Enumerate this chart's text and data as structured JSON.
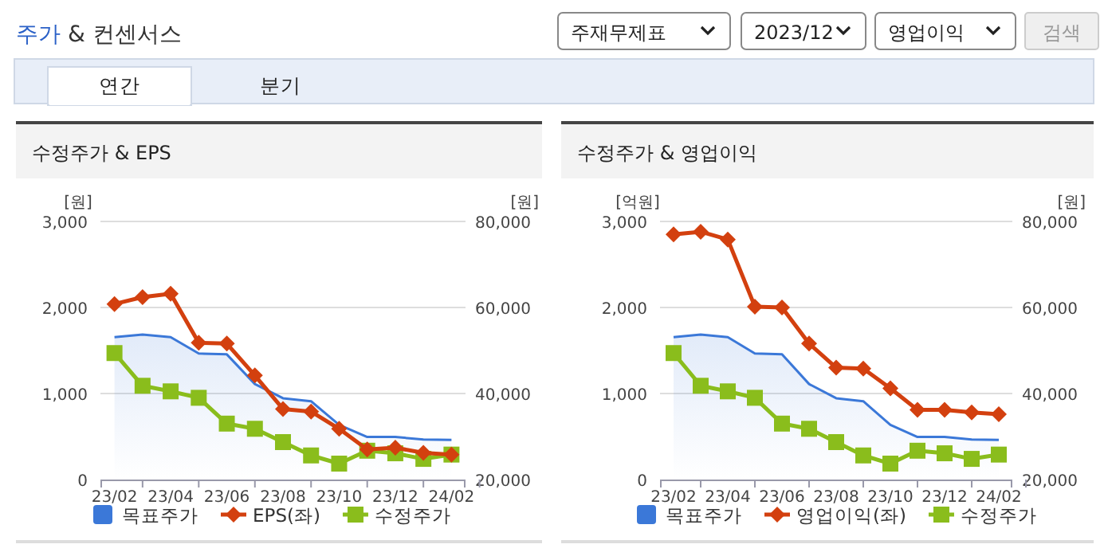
{
  "chart_data": [
    {
      "type": "other",
      "title": "주가 & 컨센서스",
      "annotations": [
        "주재무제표",
        "2023/12",
        "영업이익",
        "검색",
        "연간",
        "분기"
      ]
    },
    {
      "type": "line",
      "title": "수정주가 & EPS",
      "ylabel": "[원]",
      "y2label": "[원]",
      "categories": [
        "23/02",
        null,
        "23/04",
        null,
        "23/06",
        null,
        "23/08",
        null,
        "23/10",
        null,
        "23/12",
        null,
        "24/02"
      ],
      "ylim": [
        0,
        3000
      ],
      "yticks": [
        0,
        {
          "value": 1000,
          "label": "1,000"
        },
        {
          "value": 2000,
          "label": "2,000"
        },
        {
          "value": 3000,
          "label": "3,000"
        }
      ],
      "y2lim": [
        20000,
        80000
      ],
      "y2ticks": [
        {
          "value": 20000,
          "label": "20,000"
        },
        {
          "value": 40000,
          "label": "40,000"
        },
        {
          "value": 60000,
          "label": "60,000"
        },
        {
          "value": 80000,
          "label": "80,000"
        }
      ],
      "grid": "y",
      "legend": "bottom",
      "series": [
        {
          "name": "목표주가",
          "type": "area",
          "axis": "y2",
          "color": "#3b78d8",
          "values": [
            53100,
            53700,
            53100,
            49300,
            49100,
            42200,
            38900,
            38200,
            32700,
            29900,
            29900,
            29300,
            29200
          ]
        },
        {
          "name": "EPS(좌)",
          "color": "#d3400f",
          "marker": "diamond",
          "values": [
            2040,
            2120,
            2160,
            1590,
            1580,
            1210,
            820,
            790,
            590,
            350,
            370,
            310,
            290
          ]
        },
        {
          "name": "수정주가",
          "axis": "y2",
          "color": "#8abd1c",
          "marker": "square",
          "values": [
            49400,
            41800,
            40500,
            39000,
            33000,
            31800,
            28700,
            25600,
            23700,
            26700,
            26100,
            24800,
            25800
          ]
        }
      ]
    },
    {
      "type": "line",
      "title": "수정주가 & 영업이익",
      "ylabel": "[억원]",
      "y2label": "[원]",
      "categories": [
        "23/02",
        null,
        "23/04",
        null,
        "23/06",
        null,
        "23/08",
        null,
        "23/10",
        null,
        "23/12",
        null,
        "24/02"
      ],
      "ylim": [
        0,
        3000
      ],
      "yticks": [
        0,
        {
          "value": 1000,
          "label": "1,000"
        },
        {
          "value": 2000,
          "label": "2,000"
        },
        {
          "value": 3000,
          "label": "3,000"
        }
      ],
      "y2lim": [
        20000,
        80000
      ],
      "y2ticks": [
        {
          "value": 20000,
          "label": "20,000"
        },
        {
          "value": 40000,
          "label": "40,000"
        },
        {
          "value": 60000,
          "label": "60,000"
        },
        {
          "value": 80000,
          "label": "80,000"
        }
      ],
      "grid": "y",
      "legend": "bottom",
      "series": [
        {
          "name": "목표주가",
          "type": "area",
          "axis": "y2",
          "color": "#3b78d8",
          "values": [
            53100,
            53700,
            53100,
            49300,
            49100,
            42200,
            38900,
            38200,
            32700,
            29900,
            29900,
            29300,
            29200
          ]
        },
        {
          "name": "영업이익(좌)",
          "color": "#d3400f",
          "marker": "diamond",
          "values": [
            2850,
            2880,
            2790,
            2010,
            2000,
            1580,
            1300,
            1290,
            1060,
            810,
            810,
            780,
            760
          ]
        },
        {
          "name": "수정주가",
          "axis": "y2",
          "color": "#8abd1c",
          "marker": "square",
          "values": [
            49400,
            41800,
            40500,
            39000,
            33000,
            31800,
            28700,
            25600,
            23700,
            26700,
            26100,
            24800,
            25800
          ]
        }
      ]
    }
  ]
}
